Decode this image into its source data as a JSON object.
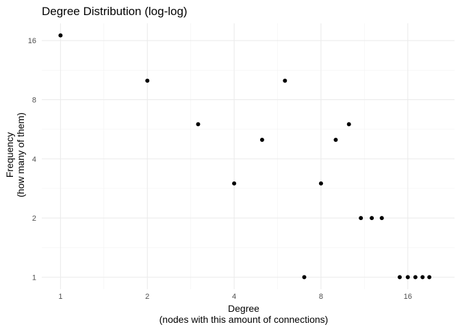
{
  "chart_data": {
    "type": "scatter",
    "title": "Degree Distribution (log-log)",
    "xlabel": [
      "Degree",
      "(nodes with this amount of connections)"
    ],
    "ylabel": [
      "Frequency",
      "(how many of them)"
    ],
    "x_scale": "log2",
    "y_scale": "log2",
    "xlim": [
      1,
      20
    ],
    "ylim": [
      1,
      17
    ],
    "x_ticks": [
      1,
      2,
      4,
      8,
      16
    ],
    "y_ticks": [
      1,
      2,
      4,
      8,
      16
    ],
    "x_tick_labels": [
      "1",
      "2",
      "4",
      "8",
      "16"
    ],
    "y_tick_labels": [
      "1",
      "2",
      "4",
      "8",
      "16"
    ],
    "grid": true,
    "legend": "none",
    "point_color": "#000000",
    "points": [
      {
        "x": 1,
        "y": 17
      },
      {
        "x": 2,
        "y": 10
      },
      {
        "x": 3,
        "y": 6
      },
      {
        "x": 4,
        "y": 3
      },
      {
        "x": 5,
        "y": 5
      },
      {
        "x": 6,
        "y": 10
      },
      {
        "x": 7,
        "y": 1
      },
      {
        "x": 8,
        "y": 3
      },
      {
        "x": 9,
        "y": 5
      },
      {
        "x": 10,
        "y": 6
      },
      {
        "x": 11,
        "y": 2
      },
      {
        "x": 12,
        "y": 2
      },
      {
        "x": 13,
        "y": 2
      },
      {
        "x": 15,
        "y": 1
      },
      {
        "x": 16,
        "y": 1
      },
      {
        "x": 17,
        "y": 1
      },
      {
        "x": 18,
        "y": 1
      },
      {
        "x": 19,
        "y": 1
      }
    ]
  }
}
